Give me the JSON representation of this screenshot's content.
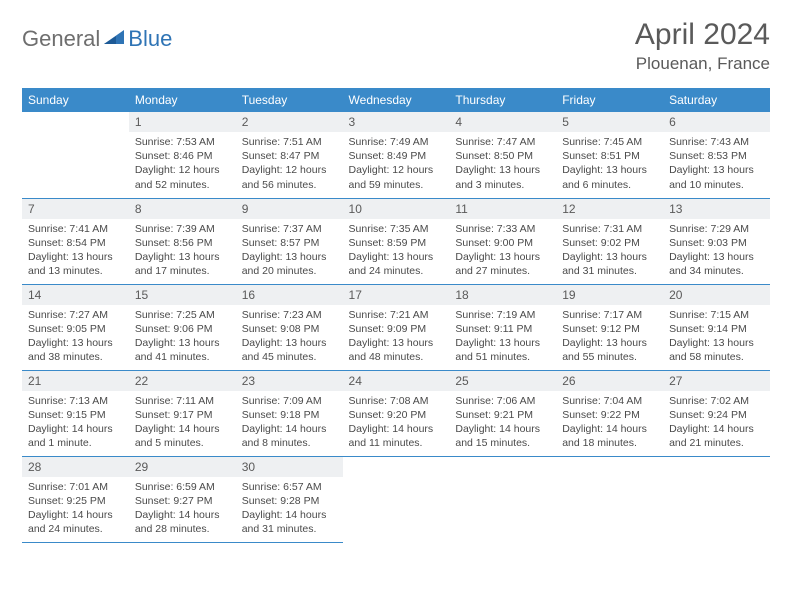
{
  "brand": {
    "part1": "General",
    "part2": "Blue"
  },
  "title": "April 2024",
  "location": "Plouenan, France",
  "colors": {
    "header_bg": "#3a8ac9",
    "header_text": "#ffffff",
    "daynum_bg": "#eef0f2",
    "text": "#4a4a4a",
    "title_text": "#5a5a5a",
    "rule": "#3a8ac9",
    "brand_gray": "#6e6e6e",
    "brand_blue": "#2f74b5"
  },
  "weekdays": [
    "Sunday",
    "Monday",
    "Tuesday",
    "Wednesday",
    "Thursday",
    "Friday",
    "Saturday"
  ],
  "weeks": [
    [
      {
        "n": "",
        "sunrise": "",
        "sunset": "",
        "daylight": ""
      },
      {
        "n": "1",
        "sunrise": "Sunrise: 7:53 AM",
        "sunset": "Sunset: 8:46 PM",
        "daylight": "Daylight: 12 hours and 52 minutes."
      },
      {
        "n": "2",
        "sunrise": "Sunrise: 7:51 AM",
        "sunset": "Sunset: 8:47 PM",
        "daylight": "Daylight: 12 hours and 56 minutes."
      },
      {
        "n": "3",
        "sunrise": "Sunrise: 7:49 AM",
        "sunset": "Sunset: 8:49 PM",
        "daylight": "Daylight: 12 hours and 59 minutes."
      },
      {
        "n": "4",
        "sunrise": "Sunrise: 7:47 AM",
        "sunset": "Sunset: 8:50 PM",
        "daylight": "Daylight: 13 hours and 3 minutes."
      },
      {
        "n": "5",
        "sunrise": "Sunrise: 7:45 AM",
        "sunset": "Sunset: 8:51 PM",
        "daylight": "Daylight: 13 hours and 6 minutes."
      },
      {
        "n": "6",
        "sunrise": "Sunrise: 7:43 AM",
        "sunset": "Sunset: 8:53 PM",
        "daylight": "Daylight: 13 hours and 10 minutes."
      }
    ],
    [
      {
        "n": "7",
        "sunrise": "Sunrise: 7:41 AM",
        "sunset": "Sunset: 8:54 PM",
        "daylight": "Daylight: 13 hours and 13 minutes."
      },
      {
        "n": "8",
        "sunrise": "Sunrise: 7:39 AM",
        "sunset": "Sunset: 8:56 PM",
        "daylight": "Daylight: 13 hours and 17 minutes."
      },
      {
        "n": "9",
        "sunrise": "Sunrise: 7:37 AM",
        "sunset": "Sunset: 8:57 PM",
        "daylight": "Daylight: 13 hours and 20 minutes."
      },
      {
        "n": "10",
        "sunrise": "Sunrise: 7:35 AM",
        "sunset": "Sunset: 8:59 PM",
        "daylight": "Daylight: 13 hours and 24 minutes."
      },
      {
        "n": "11",
        "sunrise": "Sunrise: 7:33 AM",
        "sunset": "Sunset: 9:00 PM",
        "daylight": "Daylight: 13 hours and 27 minutes."
      },
      {
        "n": "12",
        "sunrise": "Sunrise: 7:31 AM",
        "sunset": "Sunset: 9:02 PM",
        "daylight": "Daylight: 13 hours and 31 minutes."
      },
      {
        "n": "13",
        "sunrise": "Sunrise: 7:29 AM",
        "sunset": "Sunset: 9:03 PM",
        "daylight": "Daylight: 13 hours and 34 minutes."
      }
    ],
    [
      {
        "n": "14",
        "sunrise": "Sunrise: 7:27 AM",
        "sunset": "Sunset: 9:05 PM",
        "daylight": "Daylight: 13 hours and 38 minutes."
      },
      {
        "n": "15",
        "sunrise": "Sunrise: 7:25 AM",
        "sunset": "Sunset: 9:06 PM",
        "daylight": "Daylight: 13 hours and 41 minutes."
      },
      {
        "n": "16",
        "sunrise": "Sunrise: 7:23 AM",
        "sunset": "Sunset: 9:08 PM",
        "daylight": "Daylight: 13 hours and 45 minutes."
      },
      {
        "n": "17",
        "sunrise": "Sunrise: 7:21 AM",
        "sunset": "Sunset: 9:09 PM",
        "daylight": "Daylight: 13 hours and 48 minutes."
      },
      {
        "n": "18",
        "sunrise": "Sunrise: 7:19 AM",
        "sunset": "Sunset: 9:11 PM",
        "daylight": "Daylight: 13 hours and 51 minutes."
      },
      {
        "n": "19",
        "sunrise": "Sunrise: 7:17 AM",
        "sunset": "Sunset: 9:12 PM",
        "daylight": "Daylight: 13 hours and 55 minutes."
      },
      {
        "n": "20",
        "sunrise": "Sunrise: 7:15 AM",
        "sunset": "Sunset: 9:14 PM",
        "daylight": "Daylight: 13 hours and 58 minutes."
      }
    ],
    [
      {
        "n": "21",
        "sunrise": "Sunrise: 7:13 AM",
        "sunset": "Sunset: 9:15 PM",
        "daylight": "Daylight: 14 hours and 1 minute."
      },
      {
        "n": "22",
        "sunrise": "Sunrise: 7:11 AM",
        "sunset": "Sunset: 9:17 PM",
        "daylight": "Daylight: 14 hours and 5 minutes."
      },
      {
        "n": "23",
        "sunrise": "Sunrise: 7:09 AM",
        "sunset": "Sunset: 9:18 PM",
        "daylight": "Daylight: 14 hours and 8 minutes."
      },
      {
        "n": "24",
        "sunrise": "Sunrise: 7:08 AM",
        "sunset": "Sunset: 9:20 PM",
        "daylight": "Daylight: 14 hours and 11 minutes."
      },
      {
        "n": "25",
        "sunrise": "Sunrise: 7:06 AM",
        "sunset": "Sunset: 9:21 PM",
        "daylight": "Daylight: 14 hours and 15 minutes."
      },
      {
        "n": "26",
        "sunrise": "Sunrise: 7:04 AM",
        "sunset": "Sunset: 9:22 PM",
        "daylight": "Daylight: 14 hours and 18 minutes."
      },
      {
        "n": "27",
        "sunrise": "Sunrise: 7:02 AM",
        "sunset": "Sunset: 9:24 PM",
        "daylight": "Daylight: 14 hours and 21 minutes."
      }
    ],
    [
      {
        "n": "28",
        "sunrise": "Sunrise: 7:01 AM",
        "sunset": "Sunset: 9:25 PM",
        "daylight": "Daylight: 14 hours and 24 minutes."
      },
      {
        "n": "29",
        "sunrise": "Sunrise: 6:59 AM",
        "sunset": "Sunset: 9:27 PM",
        "daylight": "Daylight: 14 hours and 28 minutes."
      },
      {
        "n": "30",
        "sunrise": "Sunrise: 6:57 AM",
        "sunset": "Sunset: 9:28 PM",
        "daylight": "Daylight: 14 hours and 31 minutes."
      },
      {
        "n": "",
        "sunrise": "",
        "sunset": "",
        "daylight": ""
      },
      {
        "n": "",
        "sunrise": "",
        "sunset": "",
        "daylight": ""
      },
      {
        "n": "",
        "sunrise": "",
        "sunset": "",
        "daylight": ""
      },
      {
        "n": "",
        "sunrise": "",
        "sunset": "",
        "daylight": ""
      }
    ]
  ]
}
